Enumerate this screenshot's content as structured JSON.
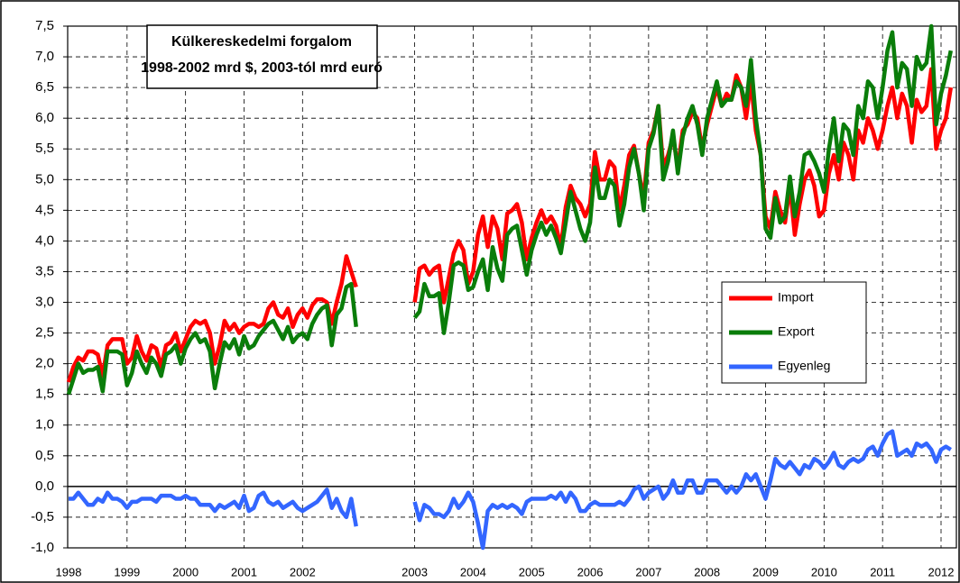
{
  "chart_data": {
    "type": "line",
    "title": "Külkereskedelmi forgalom",
    "subtitle": "1998-2002 mrd $, 2003-tól mrd euró",
    "categories": [
      "1998",
      null,
      null,
      null,
      null,
      null,
      null,
      null,
      null,
      null,
      null,
      null,
      "1999",
      null,
      null,
      null,
      null,
      null,
      null,
      null,
      null,
      null,
      null,
      null,
      "2000",
      null,
      null,
      null,
      null,
      null,
      null,
      null,
      null,
      null,
      null,
      null,
      "2001",
      null,
      null,
      null,
      null,
      null,
      null,
      null,
      null,
      null,
      null,
      null,
      "2002",
      null,
      null,
      null,
      null,
      null,
      null,
      null,
      null,
      null,
      null,
      null,
      null,
      null,
      null,
      null,
      null,
      null,
      null,
      null,
      null,
      null,
      null,
      "2003",
      null,
      null,
      null,
      null,
      null,
      null,
      null,
      null,
      null,
      null,
      null,
      "2004",
      null,
      null,
      null,
      null,
      null,
      null,
      null,
      null,
      null,
      null,
      null,
      "2005",
      null,
      null,
      null,
      null,
      null,
      null,
      null,
      null,
      null,
      null,
      null,
      "2006",
      null,
      null,
      null,
      null,
      null,
      null,
      null,
      null,
      null,
      null,
      null,
      "2007",
      null,
      null,
      null,
      null,
      null,
      null,
      null,
      null,
      null,
      null,
      null,
      "2008",
      null,
      null,
      null,
      null,
      null,
      null,
      null,
      null,
      null,
      null,
      null,
      "2009",
      null,
      null,
      null,
      null,
      null,
      null,
      null,
      null,
      null,
      null,
      null,
      "2010",
      null,
      null,
      null,
      null,
      null,
      null,
      null,
      null,
      null,
      null,
      null,
      "2011",
      null,
      null,
      null,
      null,
      null,
      null,
      null,
      null,
      null,
      null,
      null,
      "2012",
      null,
      null
    ],
    "series": [
      {
        "name": "Import",
        "color": "#ff0000",
        "values": [
          1.7,
          1.95,
          2.1,
          2.05,
          2.2,
          2.2,
          2.15,
          1.8,
          2.3,
          2.4,
          2.4,
          2.4,
          2.0,
          2.1,
          2.45,
          2.2,
          2.05,
          2.3,
          2.25,
          1.95,
          2.3,
          2.35,
          2.5,
          2.2,
          2.4,
          2.6,
          2.7,
          2.65,
          2.7,
          2.5,
          2.0,
          2.3,
          2.7,
          2.55,
          2.65,
          2.5,
          2.6,
          2.65,
          2.65,
          2.6,
          2.65,
          2.9,
          3.0,
          2.8,
          2.75,
          2.9,
          2.6,
          2.8,
          2.9,
          2.75,
          2.95,
          3.05,
          3.05,
          3.0,
          2.65,
          3.0,
          3.3,
          3.75,
          3.5,
          3.25,
          null,
          null,
          null,
          null,
          null,
          null,
          null,
          null,
          null,
          null,
          null,
          3.0,
          3.55,
          3.6,
          3.45,
          3.55,
          3.6,
          3.0,
          3.4,
          3.8,
          4.0,
          3.85,
          3.3,
          3.5,
          4.1,
          4.4,
          3.9,
          4.4,
          4.2,
          3.7,
          4.45,
          4.5,
          4.6,
          4.3,
          3.7,
          4.05,
          4.3,
          4.5,
          4.3,
          4.4,
          4.25,
          3.9,
          4.55,
          4.9,
          4.7,
          4.6,
          4.4,
          4.6,
          5.45,
          5.0,
          5.0,
          5.3,
          5.2,
          4.5,
          4.9,
          5.4,
          5.55,
          5.1,
          4.7,
          5.6,
          5.8,
          6.2,
          5.2,
          5.4,
          5.7,
          5.2,
          5.8,
          5.9,
          6.1,
          6.0,
          5.5,
          5.9,
          6.2,
          6.5,
          6.2,
          6.4,
          6.3,
          6.7,
          6.5,
          6.0,
          6.6,
          5.8,
          5.4,
          4.4,
          4.2,
          4.8,
          4.5,
          4.3,
          4.9,
          4.1,
          4.6,
          5.0,
          5.15,
          4.9,
          4.4,
          4.5,
          5.1,
          5.4,
          5.0,
          5.6,
          5.4,
          5.0,
          5.8,
          5.6,
          6.0,
          5.8,
          5.5,
          5.8,
          6.2,
          6.5,
          6.0,
          6.4,
          6.2,
          5.6,
          6.3,
          6.1,
          6.2,
          6.8,
          5.5,
          5.8,
          6.0,
          6.5
        ]
      },
      {
        "name": "Export",
        "color": "#0a7d0a",
        "values": [
          1.5,
          1.75,
          2.0,
          1.85,
          1.9,
          1.9,
          1.95,
          1.55,
          2.2,
          2.2,
          2.2,
          2.15,
          1.65,
          1.85,
          2.2,
          2.0,
          1.85,
          2.1,
          2.0,
          1.8,
          2.15,
          2.2,
          2.3,
          2.0,
          2.25,
          2.4,
          2.5,
          2.35,
          2.4,
          2.2,
          1.6,
          2.0,
          2.35,
          2.25,
          2.4,
          2.15,
          2.45,
          2.25,
          2.3,
          2.45,
          2.55,
          2.65,
          2.7,
          2.55,
          2.4,
          2.6,
          2.35,
          2.45,
          2.5,
          2.4,
          2.65,
          2.8,
          2.9,
          2.95,
          2.3,
          2.8,
          2.9,
          3.25,
          3.3,
          2.6,
          null,
          null,
          null,
          null,
          null,
          null,
          null,
          null,
          null,
          null,
          null,
          2.75,
          2.85,
          3.3,
          3.1,
          3.1,
          3.15,
          2.5,
          3.0,
          3.6,
          3.65,
          3.6,
          3.2,
          3.25,
          3.5,
          3.7,
          3.2,
          3.9,
          3.55,
          3.35,
          4.1,
          4.2,
          4.25,
          3.85,
          3.45,
          3.85,
          4.1,
          4.3,
          4.1,
          4.25,
          4.05,
          3.8,
          4.3,
          4.8,
          4.5,
          4.2,
          4.0,
          4.3,
          5.2,
          4.7,
          4.7,
          5.0,
          4.9,
          4.25,
          4.6,
          5.2,
          5.5,
          5.1,
          4.5,
          5.5,
          5.75,
          6.2,
          5.0,
          5.3,
          5.8,
          5.1,
          5.7,
          6.0,
          6.2,
          5.9,
          5.4,
          6.0,
          6.3,
          6.6,
          6.2,
          6.3,
          6.3,
          6.6,
          6.5,
          6.2,
          6.95,
          6.0,
          5.4,
          4.2,
          4.05,
          4.7,
          4.3,
          4.4,
          5.05,
          4.4,
          4.8,
          5.4,
          5.45,
          5.3,
          5.1,
          4.8,
          5.5,
          6.0,
          5.3,
          5.9,
          5.8,
          5.4,
          6.2,
          6.0,
          6.6,
          6.5,
          6.0,
          6.5,
          7.1,
          7.4,
          6.5,
          6.9,
          6.8,
          6.2,
          7.0,
          6.8,
          6.9,
          7.5,
          5.9,
          6.4,
          6.7,
          7.1
        ]
      },
      {
        "name": "Egyenleg",
        "color": "#3366ff",
        "values": [
          -0.2,
          -0.2,
          -0.1,
          -0.2,
          -0.3,
          -0.3,
          -0.2,
          -0.25,
          -0.1,
          -0.2,
          -0.2,
          -0.25,
          -0.35,
          -0.25,
          -0.25,
          -0.2,
          -0.2,
          -0.2,
          -0.25,
          -0.15,
          -0.15,
          -0.15,
          -0.2,
          -0.2,
          -0.15,
          -0.2,
          -0.2,
          -0.3,
          -0.3,
          -0.3,
          -0.4,
          -0.3,
          -0.35,
          -0.3,
          -0.25,
          -0.35,
          -0.15,
          -0.4,
          -0.35,
          -0.15,
          -0.1,
          -0.25,
          -0.3,
          -0.25,
          -0.35,
          -0.3,
          -0.25,
          -0.35,
          -0.4,
          -0.35,
          -0.3,
          -0.25,
          -0.15,
          -0.05,
          -0.35,
          -0.2,
          -0.4,
          -0.5,
          -0.2,
          -0.65,
          null,
          null,
          null,
          null,
          null,
          null,
          null,
          null,
          null,
          null,
          null,
          -0.25,
          -0.55,
          -0.3,
          -0.35,
          -0.45,
          -0.45,
          -0.5,
          -0.4,
          -0.2,
          -0.35,
          -0.25,
          -0.1,
          -0.25,
          -0.6,
          -1.0,
          -0.4,
          -0.3,
          -0.35,
          -0.3,
          -0.35,
          -0.3,
          -0.35,
          -0.45,
          -0.25,
          -0.2,
          -0.2,
          -0.2,
          -0.2,
          -0.15,
          -0.2,
          -0.1,
          -0.25,
          -0.1,
          -0.2,
          -0.4,
          -0.4,
          -0.3,
          -0.25,
          -0.3,
          -0.3,
          -0.3,
          -0.3,
          -0.25,
          -0.3,
          -0.2,
          -0.05,
          0.0,
          -0.2,
          -0.1,
          -0.05,
          0.0,
          -0.2,
          -0.1,
          0.1,
          -0.1,
          -0.1,
          0.1,
          0.1,
          -0.1,
          -0.1,
          0.1,
          0.1,
          0.1,
          0.0,
          -0.1,
          0.0,
          -0.1,
          0.0,
          0.2,
          0.1,
          0.2,
          0.0,
          -0.2,
          0.1,
          0.45,
          0.35,
          0.3,
          0.4,
          0.3,
          0.2,
          0.35,
          0.3,
          0.45,
          0.4,
          0.3,
          0.4,
          0.55,
          0.35,
          0.3,
          0.4,
          0.45,
          0.4,
          0.45,
          0.6,
          0.65,
          0.5,
          0.7,
          0.85,
          0.9,
          0.5,
          0.55,
          0.6,
          0.5,
          0.7,
          0.65,
          0.7,
          0.6,
          0.4,
          0.6,
          0.65,
          0.6
        ]
      }
    ],
    "ylim": [
      -1.0,
      7.5
    ],
    "yticks": [
      {
        "value": -1.0,
        "label": "-1,0"
      },
      {
        "value": -0.5,
        "label": "-0,5"
      },
      {
        "value": 0.0,
        "label": "0,0"
      },
      {
        "value": 0.5,
        "label": "0,5"
      },
      {
        "value": 1.0,
        "label": "1,0"
      },
      {
        "value": 1.5,
        "label": "1,5"
      },
      {
        "value": 2.0,
        "label": "2,0"
      },
      {
        "value": 2.5,
        "label": "2,5"
      },
      {
        "value": 3.0,
        "label": "3,0"
      },
      {
        "value": 3.5,
        "label": "3,5"
      },
      {
        "value": 4.0,
        "label": "4,0"
      },
      {
        "value": 4.5,
        "label": "4,5"
      },
      {
        "value": 5.0,
        "label": "5,0"
      },
      {
        "value": 5.5,
        "label": "5,5"
      },
      {
        "value": 6.0,
        "label": "6,0"
      },
      {
        "value": 6.5,
        "label": "6,5"
      },
      {
        "value": 7.0,
        "label": "7,0"
      },
      {
        "value": 7.5,
        "label": "7,5"
      }
    ],
    "grid": true,
    "legend": "right"
  }
}
